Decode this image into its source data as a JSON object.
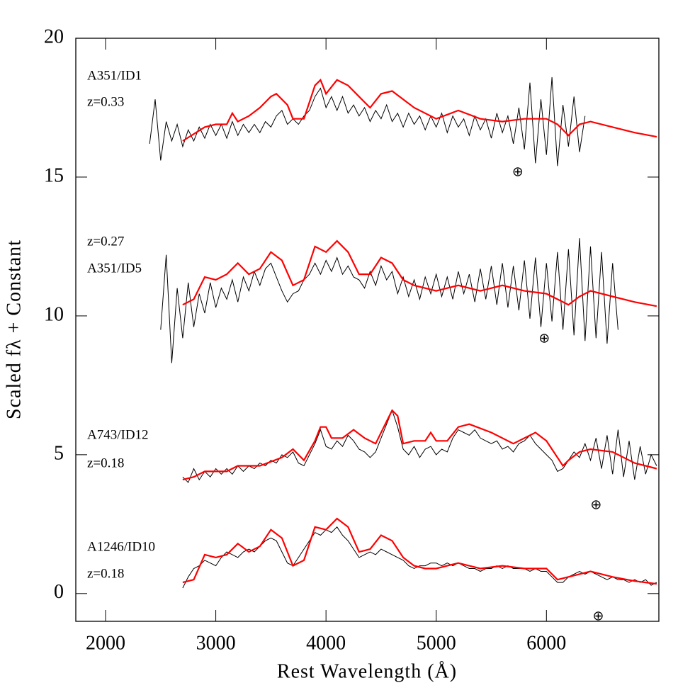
{
  "chart_data": {
    "type": "line",
    "xlabel": "Rest Wavelength (Å)",
    "ylabel": "Scaled fλ + Constant",
    "xlim": [
      1730,
      7020
    ],
    "ylim": [
      -1,
      20
    ],
    "xticks": [
      2000,
      3000,
      4000,
      5000,
      6000
    ],
    "yticks": [
      0,
      5,
      10,
      15,
      20
    ],
    "grid": false,
    "annotations": [
      "A351/ID1",
      "z=0.33",
      "z=0.27",
      "A351/ID5",
      "A743/ID12",
      "z=0.18",
      "A1246/ID10",
      "z=0.18"
    ],
    "telluric_symbol": "⊕",
    "telluric": [
      {
        "x": 5740,
        "y": 15.15
      },
      {
        "x": 5980,
        "y": 9.15
      },
      {
        "x": 6450,
        "y": 3.15
      },
      {
        "x": 6470,
        "y": -0.85
      }
    ],
    "series": [
      {
        "color": "#000000",
        "x": [
          2400,
          2450,
          2500,
          2550,
          2600,
          2650,
          2700,
          2750,
          2800,
          2850,
          2900,
          2950,
          3000,
          3050,
          3100,
          3150,
          3200,
          3250,
          3300,
          3350,
          3400,
          3450,
          3500,
          3550,
          3600,
          3650,
          3700,
          3750,
          3800,
          3850,
          3900,
          3950,
          4000,
          4050,
          4100,
          4150,
          4200,
          4250,
          4300,
          4350,
          4400,
          4450,
          4500,
          4550,
          4600,
          4650,
          4700,
          4750,
          4800,
          4850,
          4900,
          4950,
          5000,
          5050,
          5100,
          5150,
          5200,
          5250,
          5300,
          5350,
          5400,
          5450,
          5500,
          5550,
          5600,
          5650,
          5700,
          5750,
          5800,
          5850,
          5900,
          5950,
          6000,
          6050,
          6100,
          6150,
          6200,
          6250,
          6300,
          6350
        ],
        "values": [
          16.2,
          17.8,
          15.6,
          17.0,
          16.3,
          16.9,
          16.1,
          16.7,
          16.3,
          16.8,
          16.4,
          16.9,
          16.5,
          16.9,
          16.4,
          17.0,
          16.5,
          16.9,
          16.6,
          16.9,
          16.6,
          17.0,
          16.8,
          17.2,
          17.4,
          16.9,
          17.1,
          16.9,
          17.2,
          17.4,
          17.9,
          18.2,
          17.5,
          17.9,
          17.4,
          17.9,
          17.3,
          17.6,
          17.2,
          17.5,
          17.0,
          17.4,
          17.1,
          17.6,
          17.0,
          17.3,
          16.8,
          17.3,
          16.9,
          17.2,
          16.7,
          17.2,
          16.8,
          17.3,
          16.6,
          17.2,
          16.8,
          17.1,
          16.5,
          17.2,
          16.7,
          17.1,
          16.4,
          17.3,
          16.6,
          17.2,
          16.2,
          17.5,
          16.0,
          18.4,
          15.5,
          17.8,
          15.8,
          18.6,
          15.4,
          17.6,
          16.1,
          17.9,
          15.9,
          17.2
        ]
      },
      {
        "color": "#ff0000",
        "x": [
          2700,
          2900,
          3000,
          3100,
          3150,
          3200,
          3300,
          3400,
          3500,
          3550,
          3650,
          3700,
          3800,
          3900,
          3950,
          4000,
          4100,
          4200,
          4300,
          4400,
          4500,
          4600,
          4700,
          4800,
          5000,
          5200,
          5400,
          5600,
          5800,
          6000,
          6100,
          6200,
          6300,
          6400,
          6600,
          6800,
          7000
        ],
        "values": [
          16.3,
          16.8,
          16.9,
          16.9,
          17.3,
          17.0,
          17.2,
          17.5,
          17.9,
          18.0,
          17.6,
          17.1,
          17.1,
          18.3,
          18.5,
          18.0,
          18.5,
          18.3,
          17.9,
          17.5,
          18.0,
          18.1,
          17.8,
          17.5,
          17.1,
          17.4,
          17.1,
          17.0,
          17.1,
          17.1,
          16.9,
          16.5,
          16.9,
          17.0,
          16.8,
          16.6,
          16.45
        ]
      },
      {
        "color": "#000000",
        "x": [
          2500,
          2550,
          2600,
          2650,
          2700,
          2750,
          2800,
          2850,
          2900,
          2950,
          3000,
          3050,
          3100,
          3150,
          3200,
          3250,
          3300,
          3350,
          3400,
          3450,
          3500,
          3550,
          3600,
          3650,
          3700,
          3750,
          3800,
          3850,
          3900,
          3950,
          4000,
          4050,
          4100,
          4150,
          4200,
          4250,
          4300,
          4350,
          4400,
          4450,
          4500,
          4550,
          4600,
          4650,
          4700,
          4750,
          4800,
          4850,
          4900,
          4950,
          5000,
          5050,
          5100,
          5150,
          5200,
          5250,
          5300,
          5350,
          5400,
          5450,
          5500,
          5550,
          5600,
          5650,
          5700,
          5750,
          5800,
          5850,
          5900,
          5950,
          6000,
          6050,
          6100,
          6150,
          6200,
          6250,
          6300,
          6350,
          6400,
          6450,
          6500,
          6550,
          6600,
          6650
        ],
        "values": [
          9.5,
          12.2,
          8.3,
          11.0,
          9.2,
          11.2,
          9.6,
          10.8,
          10.1,
          11.2,
          10.3,
          11.0,
          10.6,
          11.3,
          10.5,
          11.4,
          10.9,
          11.6,
          11.1,
          11.7,
          11.9,
          11.4,
          10.9,
          10.5,
          10.8,
          10.9,
          11.3,
          11.5,
          11.9,
          11.5,
          12.0,
          11.6,
          12.1,
          11.5,
          11.8,
          11.4,
          11.3,
          11.0,
          11.6,
          11.1,
          11.8,
          11.3,
          11.6,
          10.8,
          11.4,
          10.7,
          11.3,
          10.6,
          11.4,
          10.8,
          11.5,
          10.7,
          11.4,
          10.6,
          11.6,
          10.8,
          11.5,
          10.5,
          11.7,
          10.6,
          11.8,
          10.4,
          11.9,
          10.3,
          11.8,
          10.2,
          12.0,
          9.9,
          12.1,
          9.6,
          11.9,
          9.8,
          12.3,
          9.5,
          12.4,
          9.3,
          12.8,
          9.1,
          12.5,
          9.2,
          12.3,
          9.0,
          11.9,
          9.5
        ]
      },
      {
        "color": "#ff0000",
        "x": [
          2700,
          2800,
          2900,
          3000,
          3100,
          3200,
          3300,
          3400,
          3500,
          3600,
          3700,
          3800,
          3900,
          4000,
          4100,
          4200,
          4300,
          4400,
          4500,
          4600,
          4700,
          4800,
          5000,
          5200,
          5400,
          5600,
          5800,
          6000,
          6100,
          6200,
          6300,
          6400,
          6600,
          6800,
          7000
        ],
        "values": [
          10.4,
          10.6,
          11.4,
          11.3,
          11.5,
          11.9,
          11.5,
          11.7,
          12.3,
          12.0,
          11.1,
          11.3,
          12.5,
          12.3,
          12.7,
          12.3,
          11.5,
          11.5,
          12.1,
          11.9,
          11.3,
          11.1,
          10.9,
          11.1,
          10.9,
          11.1,
          10.9,
          10.8,
          10.6,
          10.4,
          10.7,
          10.9,
          10.7,
          10.5,
          10.35
        ]
      },
      {
        "color": "#000000",
        "x": [
          2700,
          2750,
          2800,
          2850,
          2900,
          2950,
          3000,
          3050,
          3100,
          3150,
          3200,
          3250,
          3300,
          3350,
          3400,
          3450,
          3500,
          3550,
          3600,
          3650,
          3700,
          3750,
          3800,
          3850,
          3900,
          3950,
          4000,
          4050,
          4100,
          4150,
          4200,
          4250,
          4300,
          4350,
          4400,
          4450,
          4500,
          4550,
          4600,
          4650,
          4700,
          4750,
          4800,
          4850,
          4900,
          4950,
          5000,
          5050,
          5100,
          5150,
          5200,
          5250,
          5300,
          5350,
          5400,
          5450,
          5500,
          5550,
          5600,
          5650,
          5700,
          5750,
          5800,
          5850,
          5900,
          5950,
          6000,
          6050,
          6100,
          6150,
          6200,
          6250,
          6300,
          6350,
          6400,
          6450,
          6500,
          6550,
          6600,
          6650,
          6700,
          6750,
          6800,
          6850,
          6900,
          6950,
          7000
        ],
        "values": [
          4.2,
          4.0,
          4.5,
          4.1,
          4.4,
          4.2,
          4.5,
          4.3,
          4.5,
          4.3,
          4.6,
          4.4,
          4.6,
          4.5,
          4.7,
          4.6,
          4.8,
          4.7,
          5.0,
          4.9,
          5.1,
          4.7,
          4.6,
          5.0,
          5.4,
          5.9,
          5.3,
          5.2,
          5.5,
          5.3,
          5.7,
          5.5,
          5.2,
          5.1,
          4.9,
          5.1,
          5.6,
          6.1,
          6.6,
          6.0,
          5.2,
          5.0,
          5.3,
          4.9,
          5.2,
          5.3,
          5.0,
          5.2,
          5.1,
          5.6,
          5.9,
          5.8,
          5.7,
          5.9,
          5.6,
          5.5,
          5.4,
          5.5,
          5.2,
          5.3,
          5.1,
          5.4,
          5.5,
          5.7,
          5.4,
          5.2,
          5.0,
          4.8,
          4.4,
          4.5,
          4.8,
          5.1,
          4.9,
          5.4,
          4.8,
          5.6,
          4.5,
          5.7,
          4.3,
          5.9,
          4.2,
          5.5,
          4.1,
          5.3,
          4.3,
          5.0,
          4.6
        ]
      },
      {
        "color": "#ff0000",
        "x": [
          2700,
          2800,
          2900,
          3000,
          3100,
          3200,
          3400,
          3600,
          3700,
          3800,
          3900,
          3950,
          4000,
          4050,
          4150,
          4250,
          4350,
          4450,
          4550,
          4600,
          4650,
          4700,
          4800,
          4900,
          4950,
          5000,
          5100,
          5200,
          5300,
          5500,
          5700,
          5900,
          6000,
          6100,
          6150,
          6200,
          6300,
          6400,
          6600,
          6800,
          7000
        ],
        "values": [
          4.1,
          4.2,
          4.4,
          4.4,
          4.4,
          4.6,
          4.6,
          4.9,
          5.2,
          4.8,
          5.5,
          6.0,
          6.0,
          5.6,
          5.6,
          5.9,
          5.6,
          5.4,
          6.2,
          6.6,
          6.4,
          5.4,
          5.5,
          5.5,
          5.8,
          5.5,
          5.5,
          6.0,
          6.1,
          5.8,
          5.4,
          5.8,
          5.5,
          4.9,
          4.6,
          4.8,
          5.1,
          5.2,
          5.1,
          4.7,
          4.5
        ]
      },
      {
        "color": "#000000",
        "x": [
          2700,
          2750,
          2800,
          2850,
          2900,
          2950,
          3000,
          3050,
          3100,
          3150,
          3200,
          3250,
          3300,
          3350,
          3400,
          3450,
          3500,
          3550,
          3600,
          3650,
          3700,
          3750,
          3800,
          3850,
          3900,
          3950,
          4000,
          4050,
          4100,
          4150,
          4200,
          4250,
          4300,
          4350,
          4400,
          4450,
          4500,
          4550,
          4600,
          4650,
          4700,
          4750,
          4800,
          4850,
          4900,
          4950,
          5000,
          5050,
          5100,
          5150,
          5200,
          5250,
          5300,
          5350,
          5400,
          5450,
          5500,
          5550,
          5600,
          5650,
          5700,
          5750,
          5800,
          5850,
          5900,
          5950,
          6000,
          6050,
          6100,
          6150,
          6200,
          6250,
          6300,
          6350,
          6400,
          6450,
          6500,
          6550,
          6600,
          6650,
          6700,
          6750,
          6800,
          6850,
          6900,
          6950,
          7000
        ],
        "values": [
          0.2,
          0.6,
          0.9,
          1.0,
          1.2,
          1.1,
          1.0,
          1.3,
          1.5,
          1.4,
          1.3,
          1.5,
          1.6,
          1.5,
          1.7,
          1.9,
          2.0,
          1.9,
          1.5,
          1.1,
          1.0,
          1.3,
          1.6,
          1.9,
          2.2,
          2.1,
          2.3,
          2.2,
          2.4,
          2.1,
          1.9,
          1.6,
          1.3,
          1.4,
          1.5,
          1.4,
          1.6,
          1.5,
          1.4,
          1.3,
          1.2,
          1.0,
          0.9,
          1.0,
          1.0,
          1.1,
          1.1,
          1.0,
          1.1,
          1.0,
          1.1,
          1.0,
          0.9,
          0.9,
          0.8,
          0.9,
          0.9,
          1.0,
          0.9,
          1.0,
          0.9,
          0.9,
          0.9,
          0.8,
          0.9,
          0.8,
          0.8,
          0.6,
          0.4,
          0.4,
          0.6,
          0.7,
          0.8,
          0.7,
          0.8,
          0.7,
          0.6,
          0.5,
          0.6,
          0.5,
          0.5,
          0.4,
          0.5,
          0.4,
          0.5,
          0.3,
          0.4
        ]
      },
      {
        "color": "#ff0000",
        "x": [
          2700,
          2800,
          2900,
          3000,
          3100,
          3200,
          3300,
          3400,
          3500,
          3600,
          3700,
          3800,
          3900,
          4000,
          4100,
          4200,
          4300,
          4400,
          4500,
          4600,
          4700,
          4800,
          4900,
          5000,
          5200,
          5400,
          5600,
          5800,
          6000,
          6100,
          6200,
          6400,
          6600,
          6800,
          7000
        ],
        "values": [
          0.4,
          0.5,
          1.4,
          1.3,
          1.4,
          1.8,
          1.5,
          1.7,
          2.3,
          2.0,
          1.0,
          1.2,
          2.4,
          2.3,
          2.7,
          2.4,
          1.5,
          1.6,
          2.1,
          1.9,
          1.3,
          1.0,
          0.9,
          0.9,
          1.1,
          0.9,
          1.0,
          0.9,
          0.9,
          0.5,
          0.6,
          0.8,
          0.6,
          0.45,
          0.35
        ]
      }
    ]
  }
}
